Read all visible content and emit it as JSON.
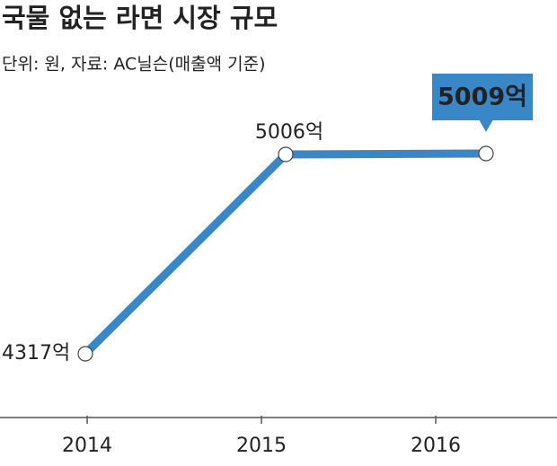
{
  "chart_data": {
    "type": "line",
    "title": "국물 없는 라면 시장 규모",
    "subtitle": "단위: 원, 자료: AC닐슨(매출액 기준)",
    "categories": [
      "2014",
      "2015",
      "2016"
    ],
    "series": [
      {
        "color": "#3a87c8",
        "values": [
          4317,
          5006,
          5009
        ],
        "value_labels": [
          "4317억",
          "5006억",
          "5009억"
        ]
      }
    ]
  }
}
